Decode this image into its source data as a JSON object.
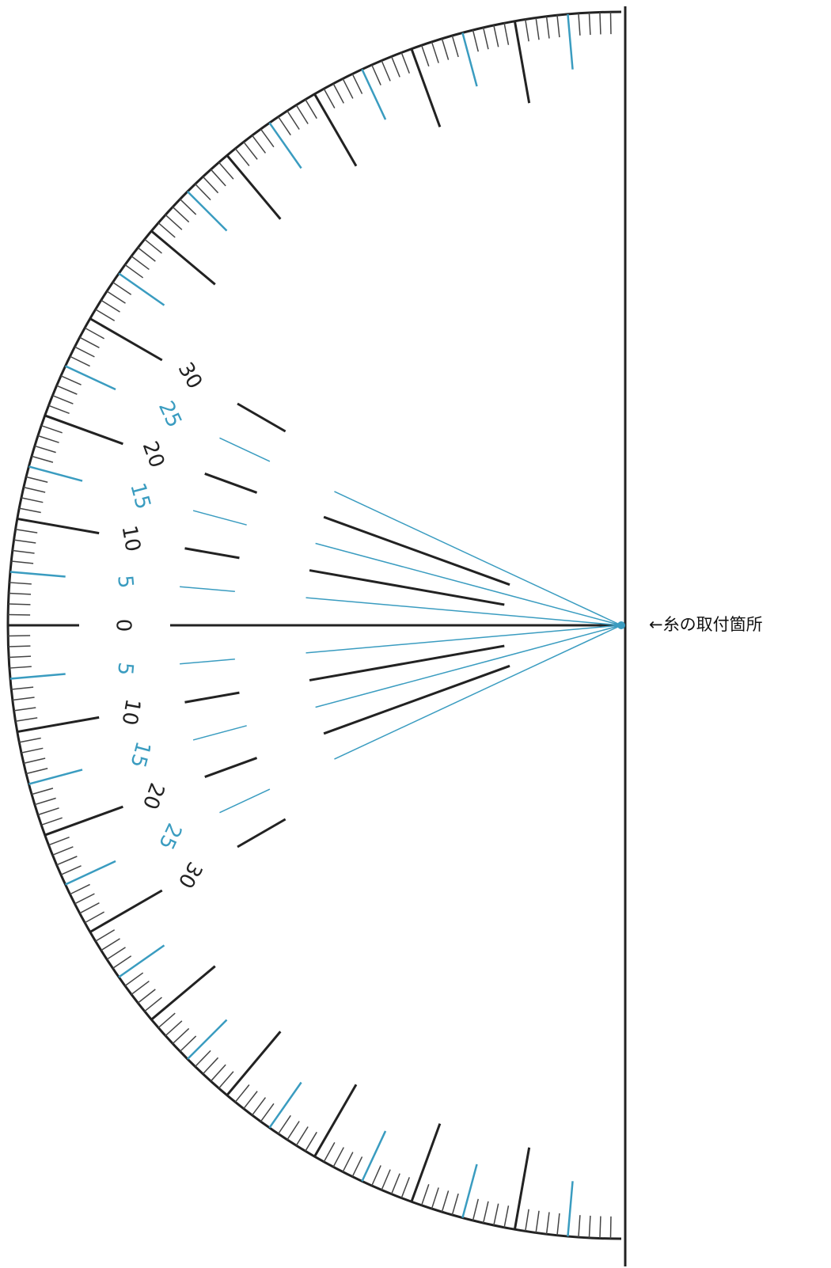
{
  "scale_labels": [
    "30",
    "25",
    "20",
    "15",
    "10",
    "5",
    "0",
    "5",
    "10",
    "15",
    "20",
    "25",
    "30"
  ],
  "annotation": "←糸の取付箇所"
}
